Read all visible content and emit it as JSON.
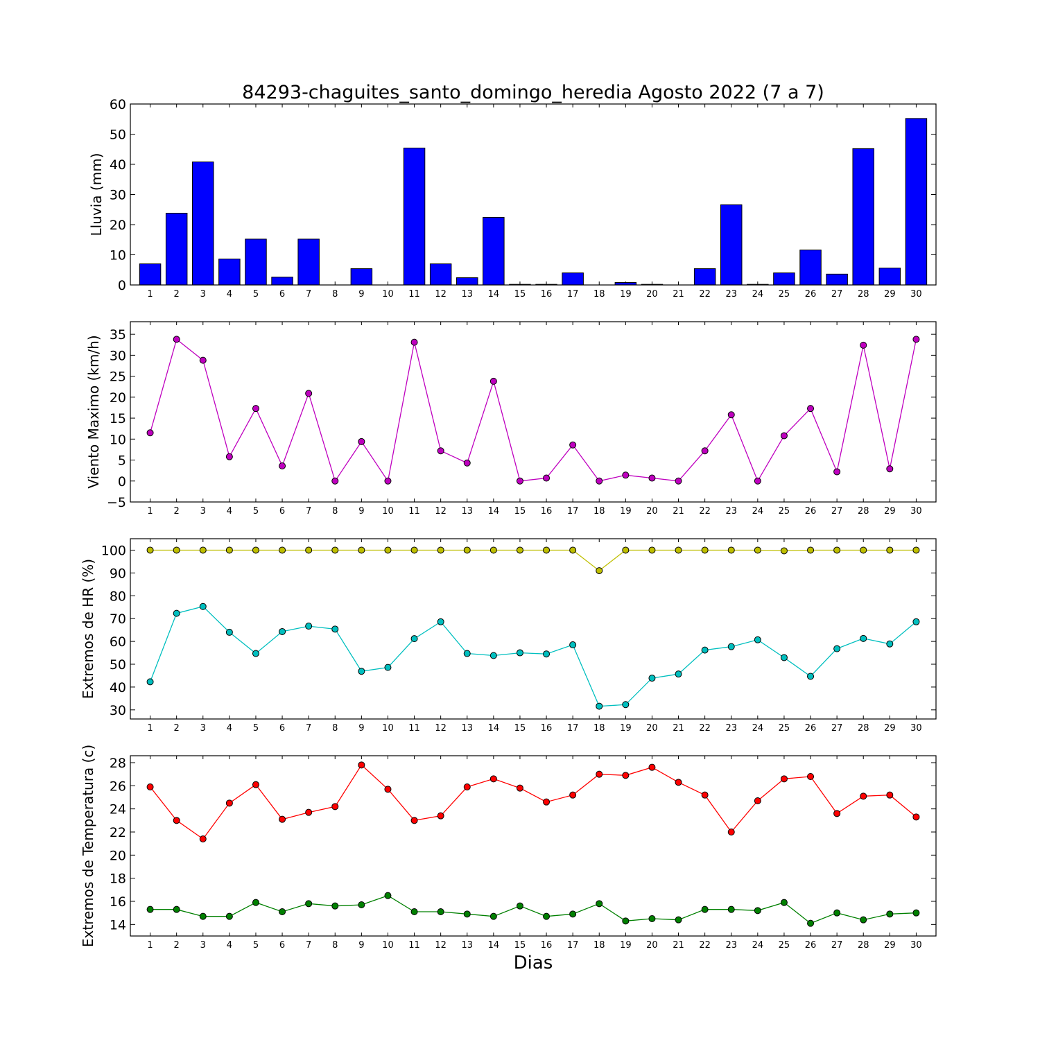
{
  "title": "84293-chaguites_santo_domingo_heredia Agosto 2022  (7 a 7)",
  "xlabel": "Dias",
  "colors": {
    "rain": "#0000ff",
    "wind": "#bf00bf",
    "hr_max": "#bfbf00",
    "hr_min": "#00bfbf",
    "temp_max": "#ff0000",
    "temp_min": "#008000"
  },
  "chart_data": [
    {
      "type": "bar",
      "ylabel": "Lluvia (mm)",
      "categories": [
        "1",
        "2",
        "3",
        "4",
        "5",
        "6",
        "7",
        "8",
        "9",
        "10",
        "11",
        "12",
        "13",
        "14",
        "15",
        "16",
        "17",
        "18",
        "19",
        "20",
        "21",
        "22",
        "23",
        "24",
        "25",
        "26",
        "27",
        "28",
        "29",
        "30"
      ],
      "ylim": [
        0,
        60
      ],
      "yticks": [
        0,
        10,
        20,
        30,
        40,
        50,
        60
      ],
      "series": [
        {
          "values": [
            7,
            23.8,
            40.8,
            8.6,
            15.2,
            2.6,
            15.2,
            0,
            5.4,
            0,
            45.4,
            7,
            2.4,
            22.4,
            0.2,
            0.2,
            4,
            0,
            0.8,
            0.2,
            0,
            5.4,
            26.6,
            0.2,
            4,
            11.6,
            3.6,
            45.2,
            5.6,
            55.2
          ],
          "color": "#0000ff"
        }
      ]
    },
    {
      "type": "line",
      "ylabel": "Viento Maximo (km/h)",
      "categories": [
        "1",
        "2",
        "3",
        "4",
        "5",
        "6",
        "7",
        "8",
        "9",
        "10",
        "11",
        "12",
        "13",
        "14",
        "15",
        "16",
        "17",
        "18",
        "19",
        "20",
        "21",
        "22",
        "23",
        "24",
        "25",
        "26",
        "27",
        "28",
        "29",
        "30"
      ],
      "ylim": [
        -5,
        38
      ],
      "yticks": [
        -5,
        0,
        5,
        10,
        15,
        20,
        25,
        30,
        35
      ],
      "series": [
        {
          "values": [
            11.5,
            33.8,
            28.8,
            5.8,
            17.3,
            3.6,
            20.9,
            0,
            9.4,
            0,
            33.1,
            7.2,
            4.3,
            23.8,
            0,
            0.7,
            8.6,
            0,
            1.4,
            0.7,
            0,
            7.2,
            15.8,
            0,
            10.8,
            17.3,
            2.2,
            32.4,
            2.9,
            33.8
          ],
          "color": "#bf00bf"
        }
      ]
    },
    {
      "type": "line",
      "ylabel": "Extremos de HR (%)",
      "categories": [
        "1",
        "2",
        "3",
        "4",
        "5",
        "6",
        "7",
        "8",
        "9",
        "10",
        "11",
        "12",
        "13",
        "14",
        "15",
        "16",
        "17",
        "18",
        "19",
        "20",
        "21",
        "22",
        "23",
        "24",
        "25",
        "26",
        "27",
        "28",
        "29",
        "30"
      ],
      "ylim": [
        26,
        105
      ],
      "yticks": [
        30,
        40,
        50,
        60,
        70,
        80,
        90,
        100
      ],
      "series": [
        {
          "values": [
            100,
            100,
            100,
            100,
            100,
            100,
            100,
            100,
            100,
            100,
            100,
            100,
            100,
            100,
            100,
            100,
            100,
            91,
            100,
            100,
            100,
            100,
            100,
            100,
            99.7,
            100,
            100,
            100,
            100,
            100
          ],
          "color": "#bfbf00"
        },
        {
          "values": [
            42.3,
            72.3,
            75.3,
            64,
            54.7,
            64.3,
            66.7,
            65.4,
            46.9,
            48.6,
            61.2,
            68.6,
            54.7,
            53.8,
            55,
            54.5,
            58.5,
            31.6,
            32.3,
            43.9,
            45.7,
            56.2,
            57.7,
            60.7,
            52.9,
            44.7,
            56.8,
            61.3,
            58.9,
            68.6
          ],
          "color": "#00bfbf"
        }
      ]
    },
    {
      "type": "line",
      "ylabel": "Extremos de Temperatura (c)",
      "categories": [
        "1",
        "2",
        "3",
        "4",
        "5",
        "6",
        "7",
        "8",
        "9",
        "10",
        "11",
        "12",
        "13",
        "14",
        "15",
        "16",
        "17",
        "18",
        "19",
        "20",
        "21",
        "22",
        "23",
        "24",
        "25",
        "26",
        "27",
        "28",
        "29",
        "30"
      ],
      "ylim": [
        13,
        28.6
      ],
      "yticks": [
        14,
        16,
        18,
        20,
        22,
        24,
        26,
        28
      ],
      "series": [
        {
          "values": [
            25.9,
            23,
            21.4,
            24.5,
            26.1,
            23.1,
            23.7,
            24.2,
            27.8,
            25.7,
            23,
            23.4,
            25.9,
            26.6,
            25.8,
            24.6,
            25.2,
            27,
            26.9,
            27.6,
            26.3,
            25.2,
            22,
            24.7,
            26.6,
            26.8,
            23.6,
            25.1,
            25.2,
            23.3
          ],
          "color": "#ff0000"
        },
        {
          "values": [
            15.3,
            15.3,
            14.7,
            14.7,
            15.9,
            15.1,
            15.8,
            15.6,
            15.7,
            16.5,
            15.1,
            15.1,
            14.9,
            14.7,
            15.6,
            14.7,
            14.9,
            15.8,
            14.3,
            14.5,
            14.4,
            15.3,
            15.3,
            15.2,
            15.9,
            14.1,
            15,
            14.4,
            14.9,
            15
          ],
          "color": "#008000"
        }
      ]
    }
  ]
}
